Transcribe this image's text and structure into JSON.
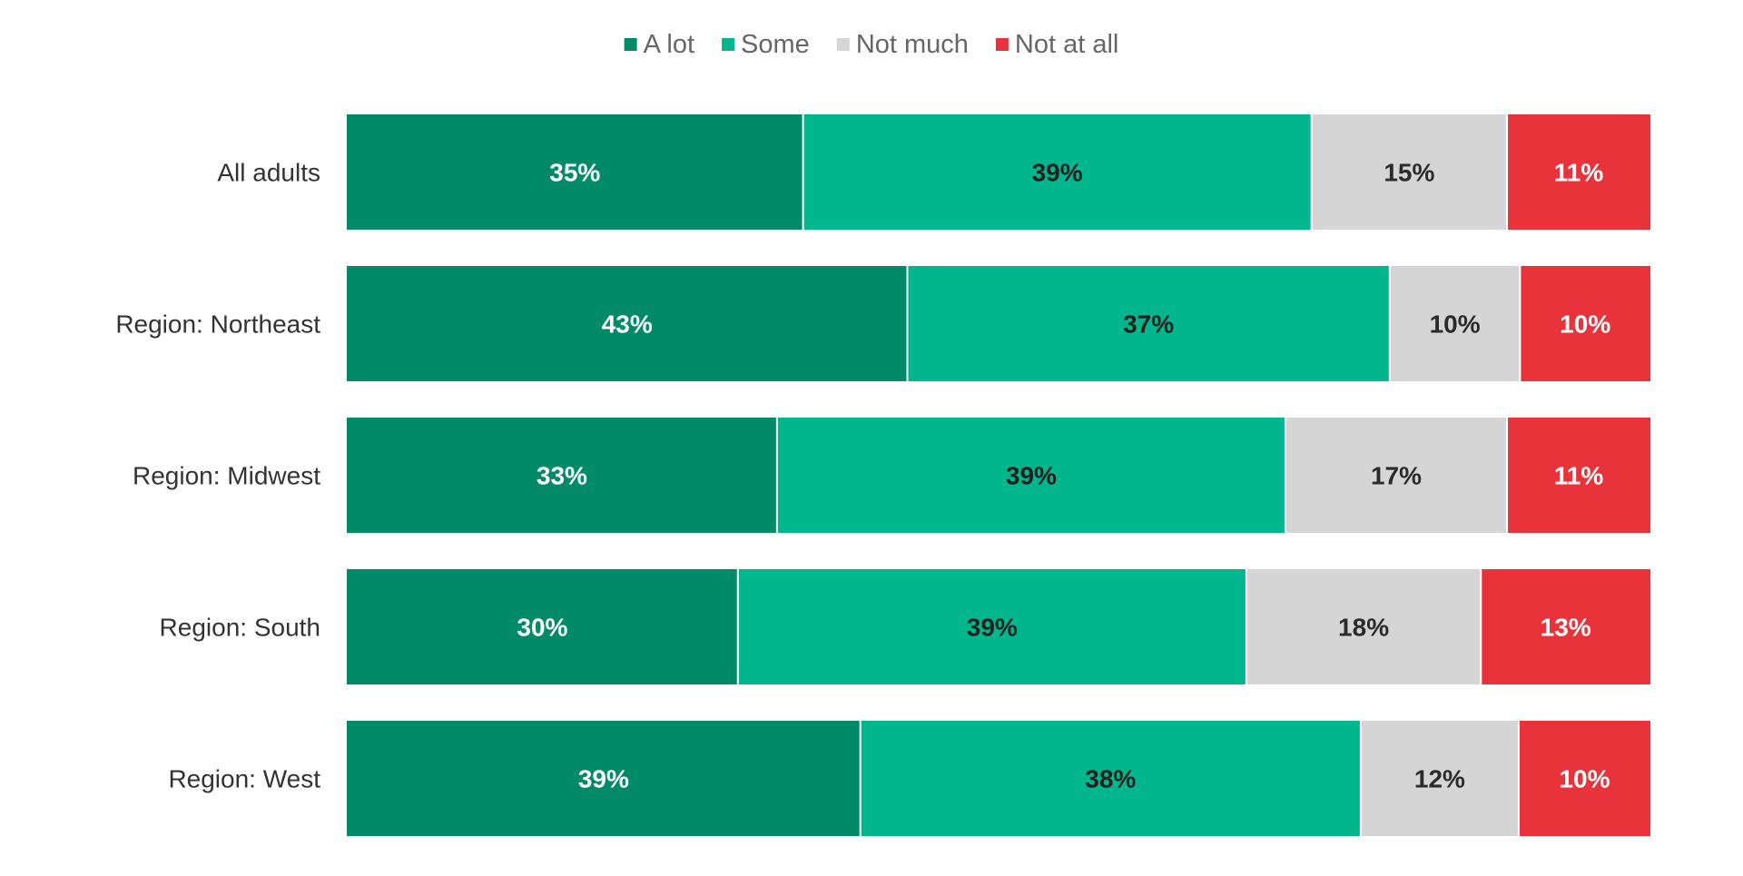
{
  "chart_data": {
    "type": "bar",
    "orientation": "horizontal",
    "stacked": true,
    "categories": [
      "All adults",
      "Region: Northeast",
      "Region: Midwest",
      "Region: South",
      "Region: West"
    ],
    "series": [
      {
        "name": "A lot",
        "color": "#008A68",
        "label_color": "#FFFFFF",
        "values": [
          35,
          43,
          33,
          30,
          39
        ]
      },
      {
        "name": "Some",
        "color": "#00B68C",
        "label_color": "#1F1F1F",
        "values": [
          39,
          37,
          39,
          39,
          38
        ]
      },
      {
        "name": "Not much",
        "color": "#D5D5D5",
        "label_color": "#2B2B2B",
        "values": [
          15,
          10,
          17,
          18,
          12
        ]
      },
      {
        "name": "Not at all",
        "color": "#E8333A",
        "label_color": "#FFFFFF",
        "values": [
          11,
          10,
          11,
          13,
          10
        ]
      }
    ],
    "value_suffix": "%",
    "xlim": [
      0,
      100
    ],
    "legend_position": "top-center",
    "grid": false
  }
}
